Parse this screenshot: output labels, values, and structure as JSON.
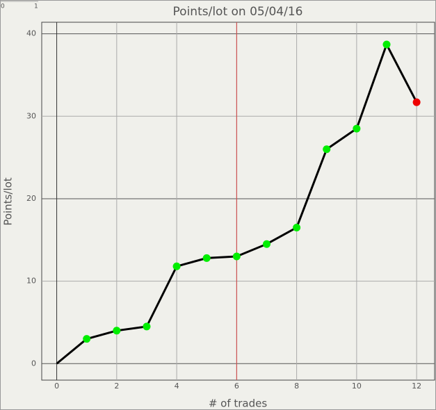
{
  "ruler": {
    "labels": [
      "0",
      "1"
    ]
  },
  "chart_data": {
    "type": "line",
    "title": "Points/lot on 05/04/16",
    "x_label": "# of trades",
    "y_label": "Points/lot",
    "x": [
      0,
      1,
      2,
      3,
      4,
      5,
      6,
      7,
      8,
      9,
      10,
      11,
      12
    ],
    "series": [
      {
        "color": "#000000",
        "values": [
          0,
          3,
          4,
          4.5,
          11.8,
          12.8,
          13,
          14.5,
          16.5,
          26,
          28.5,
          38.7,
          31.7
        ],
        "marker_colors": [
          null,
          "#00ee00",
          "#00ee00",
          "#00ee00",
          "#00ee00",
          "#00ee00",
          "#00ee00",
          "#00ee00",
          "#00ee00",
          "#00ee00",
          "#00ee00",
          "#00ee00",
          "#ee0000"
        ]
      }
    ],
    "xlim": [
      -0.5,
      12.6
    ],
    "ylim": [
      -2,
      41.4
    ],
    "xticks": [
      0,
      2,
      4,
      6,
      8,
      10,
      12
    ],
    "yticks": [
      0,
      10,
      20,
      30,
      40
    ],
    "grid": true,
    "highlight_x": 6,
    "highlight_color": "#d04040"
  }
}
